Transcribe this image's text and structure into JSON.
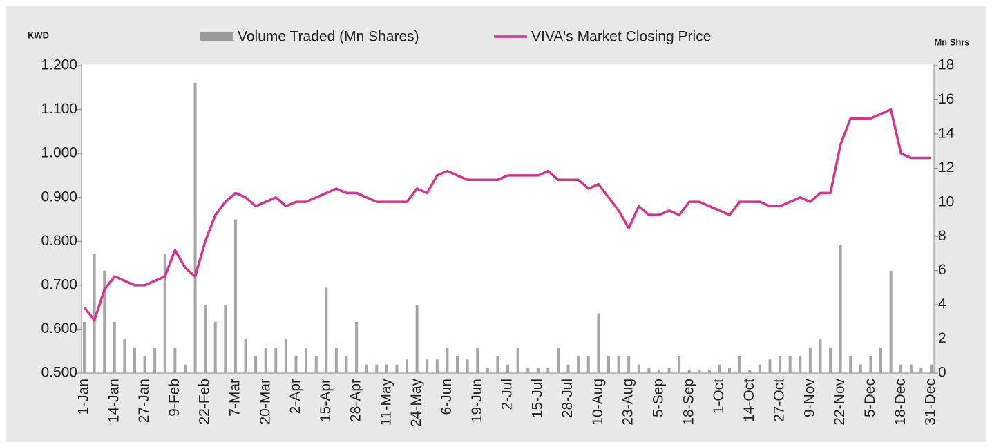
{
  "chart_data": {
    "type": "bar-line",
    "ylabel": "KWD",
    "y2label": "Mn Shrs",
    "categories": [
      "1-Jan",
      null,
      null,
      "14-Jan",
      null,
      null,
      "27-Jan",
      null,
      null,
      "9-Feb",
      null,
      null,
      "22-Feb",
      null,
      null,
      "7-Mar",
      null,
      null,
      "20-Mar",
      null,
      null,
      "2-Apr",
      null,
      null,
      "15-Apr",
      null,
      null,
      "28-Apr",
      null,
      null,
      "11-May",
      null,
      null,
      "24-May",
      null,
      null,
      "6-Jun",
      null,
      null,
      "19-Jun",
      null,
      null,
      "2-Jul",
      null,
      null,
      "15-Jul",
      null,
      null,
      "28-Jul",
      null,
      null,
      "10-Aug",
      null,
      null,
      "23-Aug",
      null,
      null,
      "5-Sep",
      null,
      null,
      "18-Sep",
      null,
      null,
      "1-Oct",
      null,
      null,
      "14-Oct",
      null,
      null,
      "27-Oct",
      null,
      null,
      "9-Nov",
      null,
      null,
      "22-Nov",
      null,
      null,
      "5-Dec",
      null,
      null,
      "18-Dec",
      null,
      null,
      "31-Dec"
    ],
    "series": [
      {
        "name": "Volume Traded (Mn Shares)",
        "type": "bar",
        "axis": "y2",
        "color": "#a6a6a6",
        "values": [
          3,
          7,
          6,
          3,
          2,
          1.5,
          1,
          1.5,
          7,
          1.5,
          0.5,
          17,
          4,
          3,
          4,
          9,
          2,
          1,
          1.5,
          1.5,
          2,
          1,
          1.5,
          1,
          5,
          1.5,
          1,
          3,
          0.5,
          0.5,
          0.5,
          0.5,
          0.8,
          4,
          0.8,
          0.8,
          1.5,
          1,
          0.8,
          1.5,
          0.3,
          1,
          0.5,
          1.5,
          0.3,
          0.3,
          0.3,
          1.5,
          0.5,
          1,
          1,
          3.5,
          1,
          1,
          1,
          0.5,
          0.3,
          0.2,
          0.3,
          1,
          0.2,
          0.2,
          0.2,
          0.5,
          0.3,
          1,
          0.2,
          0.5,
          0.8,
          1,
          1,
          1,
          1.5,
          2,
          1.5,
          7.5,
          1,
          0.5,
          1,
          1.5,
          6,
          0.5,
          0.5,
          0.3,
          0.5
        ]
      },
      {
        "name": "VIVA's Market Closing Price",
        "type": "line",
        "color": "#d6348c",
        "values": [
          0.65,
          0.62,
          0.69,
          0.72,
          0.71,
          0.7,
          0.7,
          0.71,
          0.72,
          0.78,
          0.74,
          0.72,
          0.8,
          0.86,
          0.89,
          0.91,
          0.9,
          0.88,
          0.89,
          0.9,
          0.88,
          0.89,
          0.89,
          0.9,
          0.91,
          0.92,
          0.91,
          0.91,
          0.9,
          0.89,
          0.89,
          0.89,
          0.89,
          0.92,
          0.91,
          0.95,
          0.96,
          0.95,
          0.94,
          0.94,
          0.94,
          0.94,
          0.95,
          0.95,
          0.95,
          0.95,
          0.96,
          0.94,
          0.94,
          0.94,
          0.92,
          0.93,
          0.9,
          0.87,
          0.83,
          0.88,
          0.86,
          0.86,
          0.87,
          0.86,
          0.89,
          0.89,
          0.88,
          0.87,
          0.86,
          0.89,
          0.89,
          0.89,
          0.88,
          0.88,
          0.89,
          0.9,
          0.89,
          0.91,
          0.91,
          1.02,
          1.08,
          1.08,
          1.08,
          1.09,
          1.1,
          1.0,
          0.99,
          0.99,
          0.99
        ]
      }
    ],
    "ylim": [
      0.5,
      1.2
    ],
    "yticks": [
      {
        "value": 0.5,
        "label": "0.500"
      },
      {
        "value": 0.6,
        "label": "0.600"
      },
      {
        "value": 0.7,
        "label": "0.700"
      },
      {
        "value": 0.8,
        "label": "0.800"
      },
      {
        "value": 0.9,
        "label": "0.900"
      },
      {
        "value": 1.0,
        "label": "1.000"
      },
      {
        "value": 1.1,
        "label": "1.100"
      },
      {
        "value": 1.2,
        "label": "1.200"
      }
    ],
    "y2lim": [
      0,
      18
    ],
    "y2ticks": [
      0,
      2,
      4,
      6,
      8,
      10,
      12,
      14,
      16,
      18
    ],
    "legend": "top"
  }
}
